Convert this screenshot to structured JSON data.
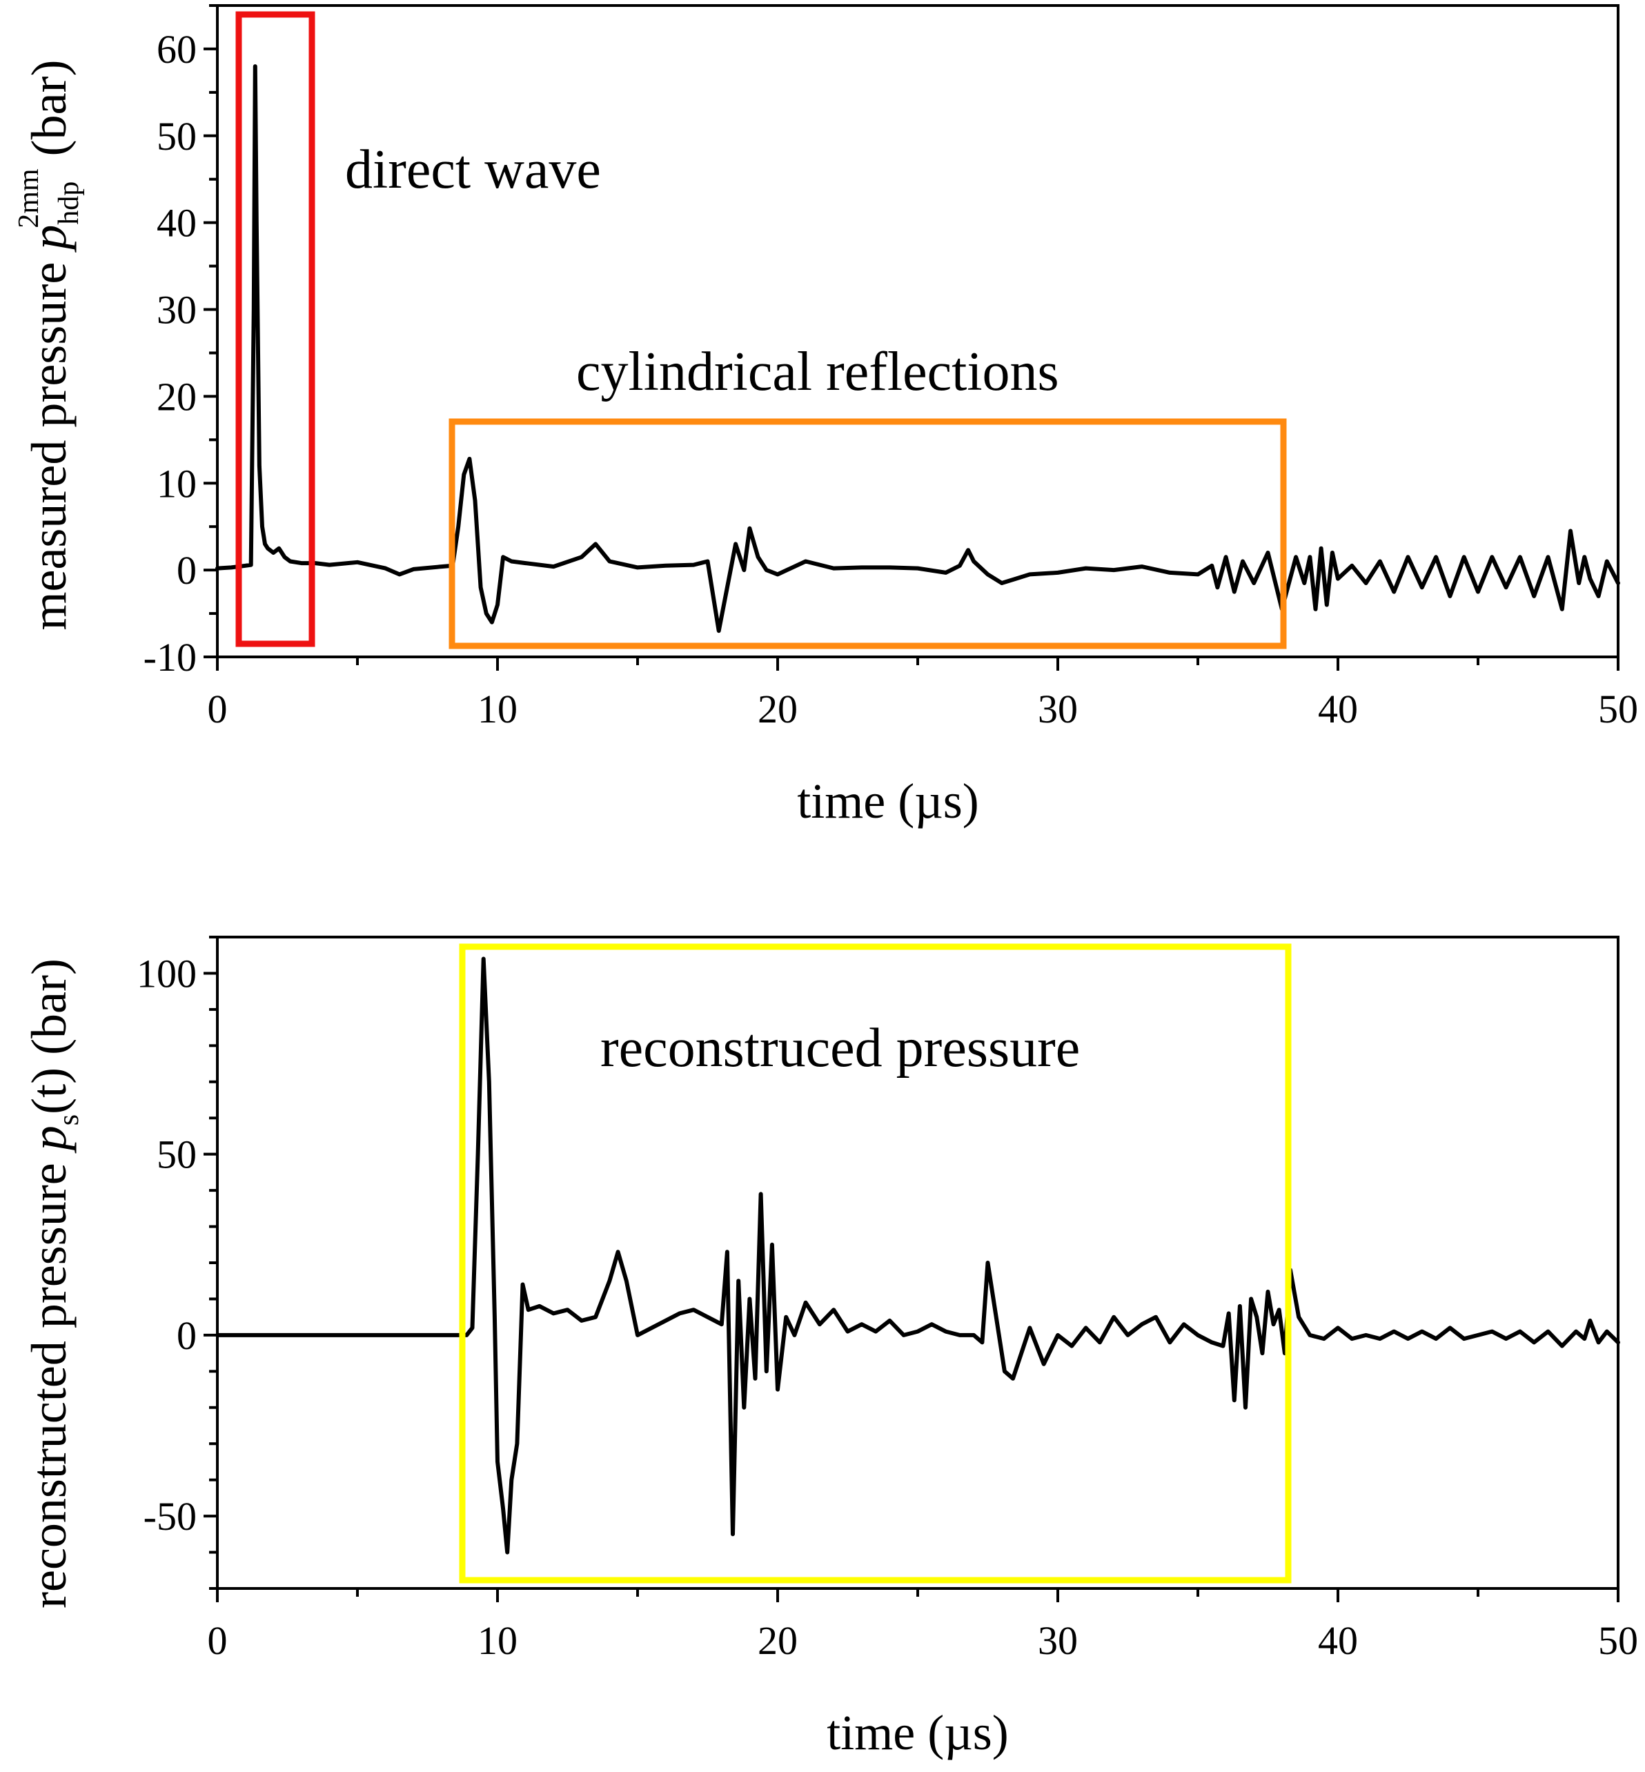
{
  "chart_data": [
    {
      "type": "line",
      "xlabel": "time (µs)",
      "ylabel": {
        "prefix": "measured pressure ",
        "symbol": "p",
        "subscript": "hdp",
        "superscript": "2mm",
        "suffix": " (bar)"
      },
      "xlim": [
        0,
        50
      ],
      "ylim": [
        -10,
        65
      ],
      "xticks": [
        0,
        10,
        20,
        30,
        40,
        50
      ],
      "xtick_labels": [
        "0",
        "10",
        "20",
        "30",
        "40",
        "50"
      ],
      "yticks": [
        -10,
        0,
        10,
        20,
        30,
        40,
        50,
        60
      ],
      "ytick_labels": [
        "-10",
        "0",
        "10",
        "20",
        "30",
        "40",
        "50",
        "60"
      ],
      "x_minor_step": 5,
      "y_minor_step": 5,
      "grid": false,
      "series": [
        {
          "color": "#000000",
          "x": [
            0,
            0.5,
            1.0,
            1.2,
            1.3,
            1.35,
            1.4,
            1.5,
            1.6,
            1.7,
            1.8,
            2.0,
            2.2,
            2.4,
            2.6,
            3.0,
            3.5,
            4.0,
            5.0,
            6.0,
            6.5,
            7.0,
            8.0,
            8.4,
            8.6,
            8.8,
            9.0,
            9.2,
            9.4,
            9.6,
            9.8,
            10.0,
            10.2,
            10.5,
            11.0,
            12.0,
            13.0,
            13.5,
            14.0,
            15.0,
            16.0,
            17.0,
            17.5,
            17.7,
            17.9,
            18.2,
            18.5,
            18.8,
            19.0,
            19.3,
            19.6,
            20.0,
            21.0,
            22.0,
            23.0,
            24.0,
            25.0,
            26.0,
            26.5,
            26.8,
            27.0,
            27.5,
            28.0,
            28.5,
            29.0,
            30.0,
            31.0,
            32.0,
            33.0,
            34.0,
            35.0,
            35.5,
            35.7,
            36.0,
            36.3,
            36.6,
            37.0,
            37.5,
            38.0,
            38.5,
            38.8,
            39.0,
            39.2,
            39.4,
            39.6,
            39.8,
            40.0,
            40.5,
            41.0,
            41.5,
            42.0,
            42.5,
            43.0,
            43.5,
            44.0,
            44.5,
            45.0,
            45.5,
            46.0,
            46.5,
            47.0,
            47.5,
            48.0,
            48.3,
            48.6,
            48.8,
            49.0,
            49.3,
            49.6,
            50.0
          ],
          "y": [
            0.2,
            0.3,
            0.5,
            0.6,
            30,
            58,
            40,
            12,
            5,
            3,
            2.5,
            2.0,
            2.5,
            1.5,
            1.0,
            0.8,
            0.8,
            0.6,
            0.9,
            0.2,
            -0.5,
            0.1,
            0.4,
            0.5,
            5,
            11,
            12.8,
            8,
            -2,
            -5,
            -6,
            -4,
            1.5,
            1.0,
            0.8,
            0.4,
            1.5,
            3.0,
            1.0,
            0.3,
            0.5,
            0.6,
            1.0,
            -3,
            -7,
            -2,
            3,
            0,
            4.8,
            1.5,
            0,
            -0.5,
            1.0,
            0.2,
            0.3,
            0.3,
            0.2,
            -0.3,
            0.5,
            2.3,
            1.0,
            -0.5,
            -1.5,
            -1.0,
            -0.5,
            -0.3,
            0.2,
            0.0,
            0.4,
            -0.3,
            -0.5,
            0.5,
            -2,
            1.5,
            -2.5,
            1.0,
            -1.5,
            2.0,
            -4.5,
            1.5,
            -1.5,
            1.5,
            -4.5,
            2.5,
            -4,
            2,
            -1,
            0.5,
            -1.5,
            1.0,
            -2.5,
            1.5,
            -2.0,
            1.5,
            -3.0,
            1.5,
            -2.5,
            1.5,
            -2.0,
            1.5,
            -3.0,
            1.5,
            -4.5,
            4.5,
            -1.5,
            1.5,
            -1.0,
            -3.0,
            1.0,
            -1.5
          ]
        }
      ],
      "annotations": [
        {
          "text": "direct wave",
          "box_color": "#ee1111"
        },
        {
          "text": "cylindrical reflections",
          "box_color": "#ff8a10"
        }
      ]
    },
    {
      "type": "line",
      "xlabel": "time (µs)",
      "ylabel": {
        "prefix": "reconstructed pressure ",
        "symbol": "p",
        "subscript": "s",
        "superscript": "",
        "suffix": "(t) (bar)"
      },
      "xlim": [
        0,
        50
      ],
      "ylim": [
        -70,
        110
      ],
      "xticks": [
        0,
        10,
        20,
        30,
        40,
        50
      ],
      "xtick_labels": [
        "0",
        "10",
        "20",
        "30",
        "40",
        "50"
      ],
      "yticks": [
        -50,
        0,
        50,
        100
      ],
      "ytick_labels": [
        "-50",
        "0",
        "50",
        "100"
      ],
      "x_minor_step": 5,
      "y_minor_step": 10,
      "grid": false,
      "series": [
        {
          "color": "#000000",
          "x": [
            0,
            5,
            8.6,
            8.9,
            9.1,
            9.3,
            9.5,
            9.7,
            9.9,
            10.0,
            10.2,
            10.35,
            10.5,
            10.7,
            10.9,
            11.1,
            11.5,
            12.0,
            12.5,
            13.0,
            13.5,
            14.0,
            14.3,
            14.6,
            15.0,
            15.5,
            16.0,
            16.5,
            17.0,
            17.5,
            18.0,
            18.2,
            18.4,
            18.6,
            18.8,
            19.0,
            19.2,
            19.4,
            19.6,
            19.8,
            20.0,
            20.3,
            20.6,
            21.0,
            21.5,
            22.0,
            22.5,
            23.0,
            23.5,
            24.0,
            24.5,
            25.0,
            25.5,
            26.0,
            26.5,
            27.0,
            27.3,
            27.5,
            27.8,
            28.1,
            28.4,
            28.7,
            29.0,
            29.5,
            30.0,
            30.5,
            31.0,
            31.5,
            32.0,
            32.5,
            33.0,
            33.5,
            34.0,
            34.5,
            35.0,
            35.5,
            35.9,
            36.1,
            36.3,
            36.5,
            36.7,
            36.9,
            37.1,
            37.3,
            37.5,
            37.7,
            37.9,
            38.1,
            38.3,
            38.6,
            39.0,
            39.5,
            40.0,
            40.5,
            41.0,
            41.5,
            42.0,
            42.5,
            43.0,
            43.5,
            44.0,
            44.5,
            45.0,
            45.5,
            46.0,
            46.5,
            47.0,
            47.5,
            48.0,
            48.5,
            48.8,
            49.0,
            49.3,
            49.6,
            50.0
          ],
          "y": [
            0,
            0,
            0,
            0,
            2,
            50,
            104,
            70,
            5,
            -35,
            -48,
            -60,
            -40,
            -30,
            14,
            7,
            8,
            6,
            7,
            4,
            5,
            15,
            23,
            15,
            0,
            2,
            4,
            6,
            7,
            5,
            3,
            23,
            -55,
            15,
            -20,
            10,
            -12,
            39,
            -10,
            25,
            -15,
            5,
            0,
            9,
            3,
            7,
            1,
            3,
            1,
            4,
            0,
            1,
            3,
            1,
            0,
            0,
            -2,
            20,
            5,
            -10,
            -12,
            -5,
            2,
            -8,
            0,
            -3,
            2,
            -2,
            5,
            0,
            3,
            5,
            -2,
            3,
            0,
            -2,
            -3,
            6,
            -18,
            8,
            -20,
            10,
            5,
            -5,
            12,
            3,
            7,
            -5,
            18,
            5,
            0,
            -1,
            2,
            -1,
            0,
            -1,
            1,
            -1,
            1,
            -1,
            2,
            -1,
            0,
            1,
            -1,
            1,
            -2,
            1,
            -3,
            1,
            -1,
            4,
            -2,
            1,
            -2
          ]
        }
      ],
      "annotations": [
        {
          "text": "reconstruced pressure",
          "box_color": "#ffff00"
        }
      ]
    }
  ]
}
